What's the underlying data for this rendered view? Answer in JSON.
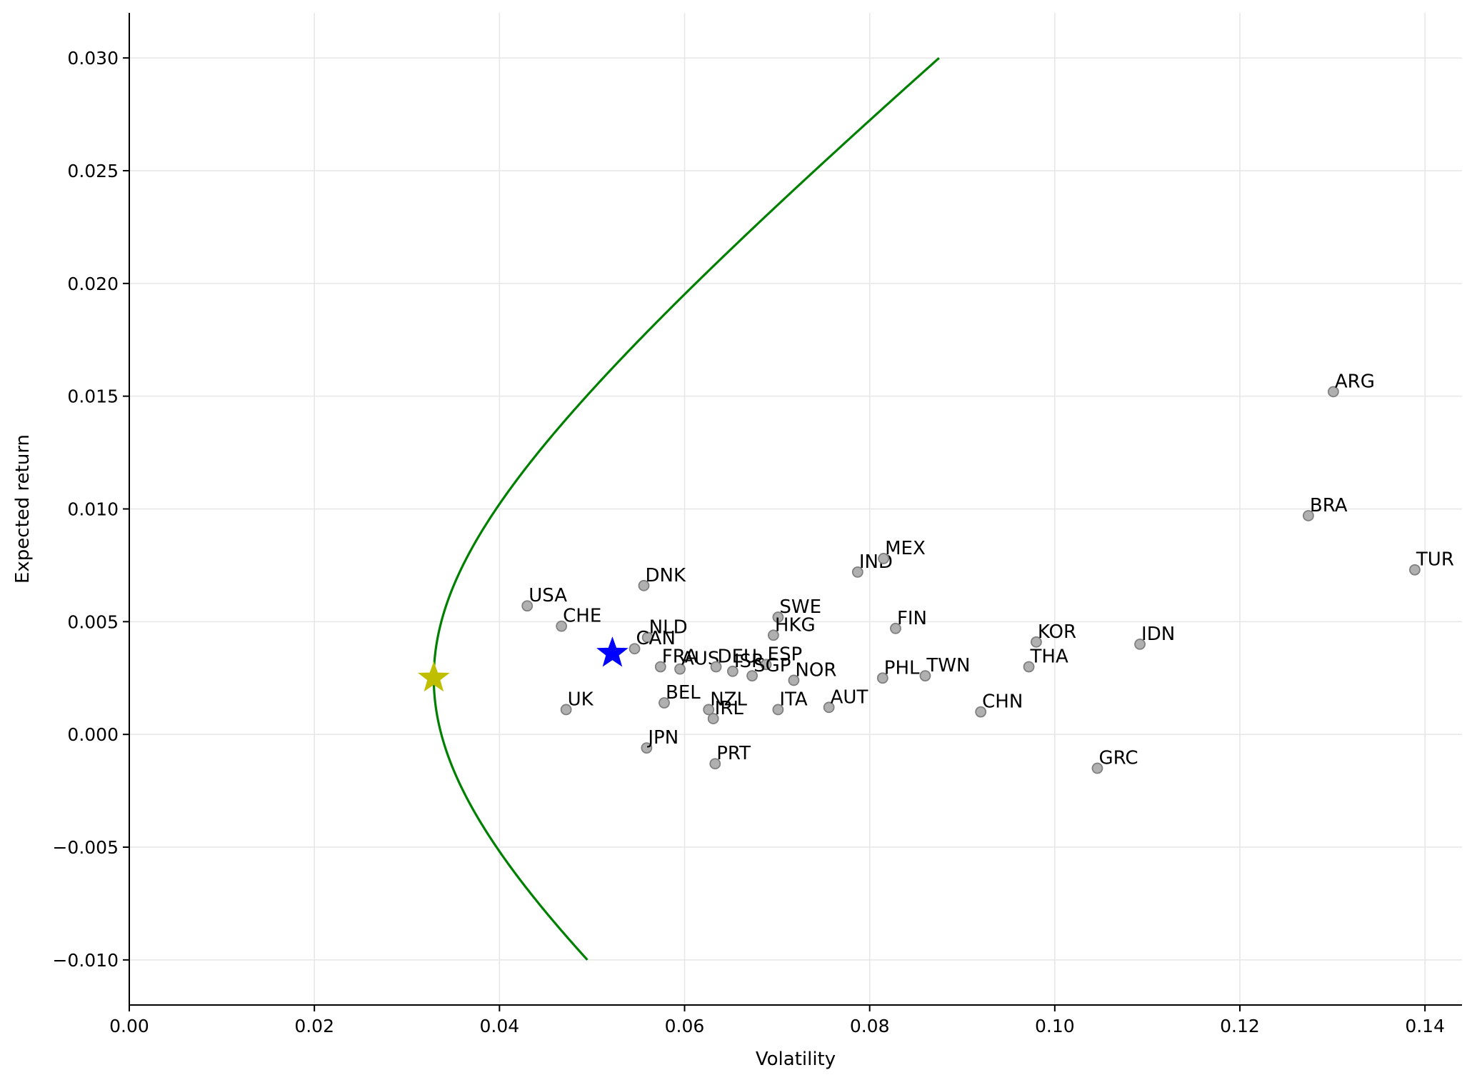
{
  "chart_data": {
    "type": "scatter",
    "title": "",
    "xlabel": "Volatility",
    "ylabel": "Expected return",
    "xlim": [
      0.0,
      0.144
    ],
    "ylim": [
      -0.012,
      0.032
    ],
    "grid": true,
    "x_ticks": [
      "0.00",
      "0.02",
      "0.04",
      "0.06",
      "0.08",
      "0.10",
      "0.12",
      "0.14"
    ],
    "x_tick_values": [
      0.0,
      0.02,
      0.04,
      0.06,
      0.08,
      0.1,
      0.12,
      0.14
    ],
    "y_ticks": [
      "−0.010",
      "−0.005",
      "0.000",
      "0.005",
      "0.010",
      "0.015",
      "0.020",
      "0.025",
      "0.030"
    ],
    "y_tick_values": [
      -0.01,
      -0.005,
      0.0,
      0.005,
      0.01,
      0.015,
      0.02,
      0.025,
      0.03
    ],
    "frontier": {
      "color": "#008000",
      "min_variance_vol": 0.0329,
      "min_variance_ret": 0.0025,
      "ret_range": [
        -0.01,
        0.03
      ],
      "endpoints": [
        [
          0.0495,
          -0.01
        ],
        [
          0.0875,
          0.03
        ]
      ]
    },
    "min_variance_marker": {
      "x": 0.0329,
      "y": 0.0025,
      "color": "#bfbf00",
      "shape": "star"
    },
    "tangency_marker": {
      "x": 0.0522,
      "y": 0.0036,
      "color": "#0000ff",
      "shape": "star"
    },
    "point_color": "#b0b0b0",
    "point_edge_color": "#808080",
    "points": [
      {
        "label": "USA",
        "x": 0.043,
        "y": 0.0057
      },
      {
        "label": "CHE",
        "x": 0.0467,
        "y": 0.0048
      },
      {
        "label": "UK",
        "x": 0.0472,
        "y": 0.0011
      },
      {
        "label": "DNK",
        "x": 0.0556,
        "y": 0.0066
      },
      {
        "label": "NLD",
        "x": 0.056,
        "y": 0.0043
      },
      {
        "label": "CAN",
        "x": 0.0546,
        "y": 0.0038
      },
      {
        "label": "FRA",
        "x": 0.0574,
        "y": 0.003
      },
      {
        "label": "AUS",
        "x": 0.0595,
        "y": 0.0029
      },
      {
        "label": "BEL",
        "x": 0.0578,
        "y": 0.0014
      },
      {
        "label": "JPN",
        "x": 0.0559,
        "y": -0.0006
      },
      {
        "label": "DEU",
        "x": 0.0634,
        "y": 0.003
      },
      {
        "label": "ISR",
        "x": 0.0652,
        "y": 0.0028
      },
      {
        "label": "ESP",
        "x": 0.0688,
        "y": 0.0031
      },
      {
        "label": "SGP",
        "x": 0.0673,
        "y": 0.0026
      },
      {
        "label": "NZL",
        "x": 0.0626,
        "y": 0.0011
      },
      {
        "label": "IRL",
        "x": 0.0631,
        "y": 0.0007
      },
      {
        "label": "PRT",
        "x": 0.0633,
        "y": -0.0013
      },
      {
        "label": "SWE",
        "x": 0.0701,
        "y": 0.0052
      },
      {
        "label": "HKG",
        "x": 0.0696,
        "y": 0.0044
      },
      {
        "label": "NOR",
        "x": 0.0718,
        "y": 0.0024
      },
      {
        "label": "ITA",
        "x": 0.0701,
        "y": 0.0011
      },
      {
        "label": "AUT",
        "x": 0.0756,
        "y": 0.0012
      },
      {
        "label": "IND",
        "x": 0.0787,
        "y": 0.0072
      },
      {
        "label": "MEX",
        "x": 0.0815,
        "y": 0.0078
      },
      {
        "label": "FIN",
        "x": 0.0828,
        "y": 0.0047
      },
      {
        "label": "PHL",
        "x": 0.0814,
        "y": 0.0025
      },
      {
        "label": "TWN",
        "x": 0.086,
        "y": 0.0026
      },
      {
        "label": "CHN",
        "x": 0.092,
        "y": 0.001
      },
      {
        "label": "KOR",
        "x": 0.098,
        "y": 0.0041
      },
      {
        "label": "THA",
        "x": 0.0972,
        "y": 0.003
      },
      {
        "label": "IDN",
        "x": 0.1092,
        "y": 0.004
      },
      {
        "label": "GRC",
        "x": 0.1046,
        "y": -0.0015
      },
      {
        "label": "BRA",
        "x": 0.1274,
        "y": 0.0097
      },
      {
        "label": "ARG",
        "x": 0.1301,
        "y": 0.0152
      },
      {
        "label": "TUR",
        "x": 0.1389,
        "y": 0.0073
      }
    ]
  }
}
